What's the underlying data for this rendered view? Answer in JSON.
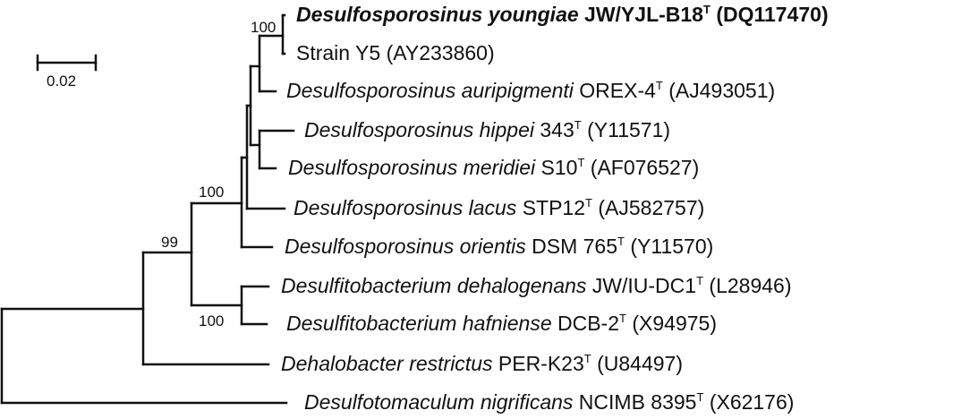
{
  "tree": {
    "taxa": [
      {
        "italic": "Desulfosporosinus youngiae",
        "strain": "JW/YJL-B18",
        "type_strain": true,
        "accession": "(DQ117470)",
        "bold": true
      },
      {
        "italic": "",
        "strain": "Strain Y5",
        "type_strain": false,
        "accession": "(AY233860)",
        "bold": false
      },
      {
        "italic": "Desulfosporosinus auripigmenti",
        "strain": "OREX-4",
        "type_strain": true,
        "accession": "(AJ493051)",
        "bold": false
      },
      {
        "italic": "Desulfosporosinus hippei",
        "strain": "343",
        "type_strain": true,
        "accession": "(Y11571)",
        "bold": false
      },
      {
        "italic": "Desulfosporosinus meridiei",
        "strain": "S10",
        "type_strain": true,
        "accession": "(AF076527)",
        "bold": false
      },
      {
        "italic": "Desulfosporosinus lacus",
        "strain": "STP12",
        "type_strain": true,
        "accession": "(AJ582757)",
        "bold": false
      },
      {
        "italic": "Desulfosporosinus orientis",
        "strain": "DSM 765",
        "type_strain": true,
        "accession": "(Y11570)",
        "bold": false
      },
      {
        "italic": "Desulfitobacterium dehalogenans",
        "strain": "JW/IU-DC1",
        "type_strain": true,
        "accession": "(L28946)",
        "bold": false
      },
      {
        "italic": "Desulfitobacterium hafniense",
        "strain": "DCB-2",
        "type_strain": true,
        "accession": "(X94975)",
        "bold": false
      },
      {
        "italic": "Dehalobacter restrictus",
        "strain": "PER-K23",
        "type_strain": true,
        "accession": "(U84497)",
        "bold": false
      },
      {
        "italic": "Desulfotomaculum nigrificans",
        "strain": "NCIMB 8395",
        "type_strain": true,
        "accession": "(X62176)",
        "bold": false
      }
    ],
    "type_marker": "T",
    "bootstrap": {
      "youngiae_y5": "100",
      "desulfosporosinus": "100",
      "desulfo_desulfito": "99",
      "desulfitobacterium": "100"
    },
    "scale_bar_label": "0.02"
  }
}
